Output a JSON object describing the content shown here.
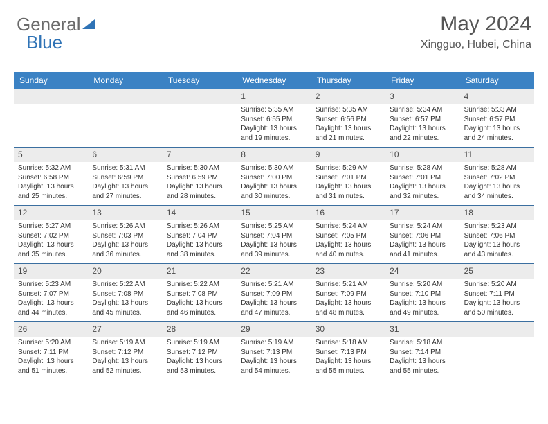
{
  "logo": {
    "part1": "General",
    "part2": "Blue"
  },
  "title": "May 2024",
  "location": "Xingguo, Hubei, China",
  "colors": {
    "header_bg": "#3b82c4",
    "header_text": "#ffffff",
    "row_divider": "#3b6fa0",
    "daynum_bg": "#ececec",
    "body_text": "#333333",
    "title_text": "#555555"
  },
  "dow": [
    "Sunday",
    "Monday",
    "Tuesday",
    "Wednesday",
    "Thursday",
    "Friday",
    "Saturday"
  ],
  "weeks": [
    [
      {
        "n": "",
        "sunrise": "",
        "sunset": "",
        "day": ""
      },
      {
        "n": "",
        "sunrise": "",
        "sunset": "",
        "day": ""
      },
      {
        "n": "",
        "sunrise": "",
        "sunset": "",
        "day": ""
      },
      {
        "n": "1",
        "sunrise": "Sunrise: 5:35 AM",
        "sunset": "Sunset: 6:55 PM",
        "day": "Daylight: 13 hours and 19 minutes."
      },
      {
        "n": "2",
        "sunrise": "Sunrise: 5:35 AM",
        "sunset": "Sunset: 6:56 PM",
        "day": "Daylight: 13 hours and 21 minutes."
      },
      {
        "n": "3",
        "sunrise": "Sunrise: 5:34 AM",
        "sunset": "Sunset: 6:57 PM",
        "day": "Daylight: 13 hours and 22 minutes."
      },
      {
        "n": "4",
        "sunrise": "Sunrise: 5:33 AM",
        "sunset": "Sunset: 6:57 PM",
        "day": "Daylight: 13 hours and 24 minutes."
      }
    ],
    [
      {
        "n": "5",
        "sunrise": "Sunrise: 5:32 AM",
        "sunset": "Sunset: 6:58 PM",
        "day": "Daylight: 13 hours and 25 minutes."
      },
      {
        "n": "6",
        "sunrise": "Sunrise: 5:31 AM",
        "sunset": "Sunset: 6:59 PM",
        "day": "Daylight: 13 hours and 27 minutes."
      },
      {
        "n": "7",
        "sunrise": "Sunrise: 5:30 AM",
        "sunset": "Sunset: 6:59 PM",
        "day": "Daylight: 13 hours and 28 minutes."
      },
      {
        "n": "8",
        "sunrise": "Sunrise: 5:30 AM",
        "sunset": "Sunset: 7:00 PM",
        "day": "Daylight: 13 hours and 30 minutes."
      },
      {
        "n": "9",
        "sunrise": "Sunrise: 5:29 AM",
        "sunset": "Sunset: 7:01 PM",
        "day": "Daylight: 13 hours and 31 minutes."
      },
      {
        "n": "10",
        "sunrise": "Sunrise: 5:28 AM",
        "sunset": "Sunset: 7:01 PM",
        "day": "Daylight: 13 hours and 32 minutes."
      },
      {
        "n": "11",
        "sunrise": "Sunrise: 5:28 AM",
        "sunset": "Sunset: 7:02 PM",
        "day": "Daylight: 13 hours and 34 minutes."
      }
    ],
    [
      {
        "n": "12",
        "sunrise": "Sunrise: 5:27 AM",
        "sunset": "Sunset: 7:02 PM",
        "day": "Daylight: 13 hours and 35 minutes."
      },
      {
        "n": "13",
        "sunrise": "Sunrise: 5:26 AM",
        "sunset": "Sunset: 7:03 PM",
        "day": "Daylight: 13 hours and 36 minutes."
      },
      {
        "n": "14",
        "sunrise": "Sunrise: 5:26 AM",
        "sunset": "Sunset: 7:04 PM",
        "day": "Daylight: 13 hours and 38 minutes."
      },
      {
        "n": "15",
        "sunrise": "Sunrise: 5:25 AM",
        "sunset": "Sunset: 7:04 PM",
        "day": "Daylight: 13 hours and 39 minutes."
      },
      {
        "n": "16",
        "sunrise": "Sunrise: 5:24 AM",
        "sunset": "Sunset: 7:05 PM",
        "day": "Daylight: 13 hours and 40 minutes."
      },
      {
        "n": "17",
        "sunrise": "Sunrise: 5:24 AM",
        "sunset": "Sunset: 7:06 PM",
        "day": "Daylight: 13 hours and 41 minutes."
      },
      {
        "n": "18",
        "sunrise": "Sunrise: 5:23 AM",
        "sunset": "Sunset: 7:06 PM",
        "day": "Daylight: 13 hours and 43 minutes."
      }
    ],
    [
      {
        "n": "19",
        "sunrise": "Sunrise: 5:23 AM",
        "sunset": "Sunset: 7:07 PM",
        "day": "Daylight: 13 hours and 44 minutes."
      },
      {
        "n": "20",
        "sunrise": "Sunrise: 5:22 AM",
        "sunset": "Sunset: 7:08 PM",
        "day": "Daylight: 13 hours and 45 minutes."
      },
      {
        "n": "21",
        "sunrise": "Sunrise: 5:22 AM",
        "sunset": "Sunset: 7:08 PM",
        "day": "Daylight: 13 hours and 46 minutes."
      },
      {
        "n": "22",
        "sunrise": "Sunrise: 5:21 AM",
        "sunset": "Sunset: 7:09 PM",
        "day": "Daylight: 13 hours and 47 minutes."
      },
      {
        "n": "23",
        "sunrise": "Sunrise: 5:21 AM",
        "sunset": "Sunset: 7:09 PM",
        "day": "Daylight: 13 hours and 48 minutes."
      },
      {
        "n": "24",
        "sunrise": "Sunrise: 5:20 AM",
        "sunset": "Sunset: 7:10 PM",
        "day": "Daylight: 13 hours and 49 minutes."
      },
      {
        "n": "25",
        "sunrise": "Sunrise: 5:20 AM",
        "sunset": "Sunset: 7:11 PM",
        "day": "Daylight: 13 hours and 50 minutes."
      }
    ],
    [
      {
        "n": "26",
        "sunrise": "Sunrise: 5:20 AM",
        "sunset": "Sunset: 7:11 PM",
        "day": "Daylight: 13 hours and 51 minutes."
      },
      {
        "n": "27",
        "sunrise": "Sunrise: 5:19 AM",
        "sunset": "Sunset: 7:12 PM",
        "day": "Daylight: 13 hours and 52 minutes."
      },
      {
        "n": "28",
        "sunrise": "Sunrise: 5:19 AM",
        "sunset": "Sunset: 7:12 PM",
        "day": "Daylight: 13 hours and 53 minutes."
      },
      {
        "n": "29",
        "sunrise": "Sunrise: 5:19 AM",
        "sunset": "Sunset: 7:13 PM",
        "day": "Daylight: 13 hours and 54 minutes."
      },
      {
        "n": "30",
        "sunrise": "Sunrise: 5:18 AM",
        "sunset": "Sunset: 7:13 PM",
        "day": "Daylight: 13 hours and 55 minutes."
      },
      {
        "n": "31",
        "sunrise": "Sunrise: 5:18 AM",
        "sunset": "Sunset: 7:14 PM",
        "day": "Daylight: 13 hours and 55 minutes."
      },
      {
        "n": "",
        "sunrise": "",
        "sunset": "",
        "day": ""
      }
    ]
  ]
}
